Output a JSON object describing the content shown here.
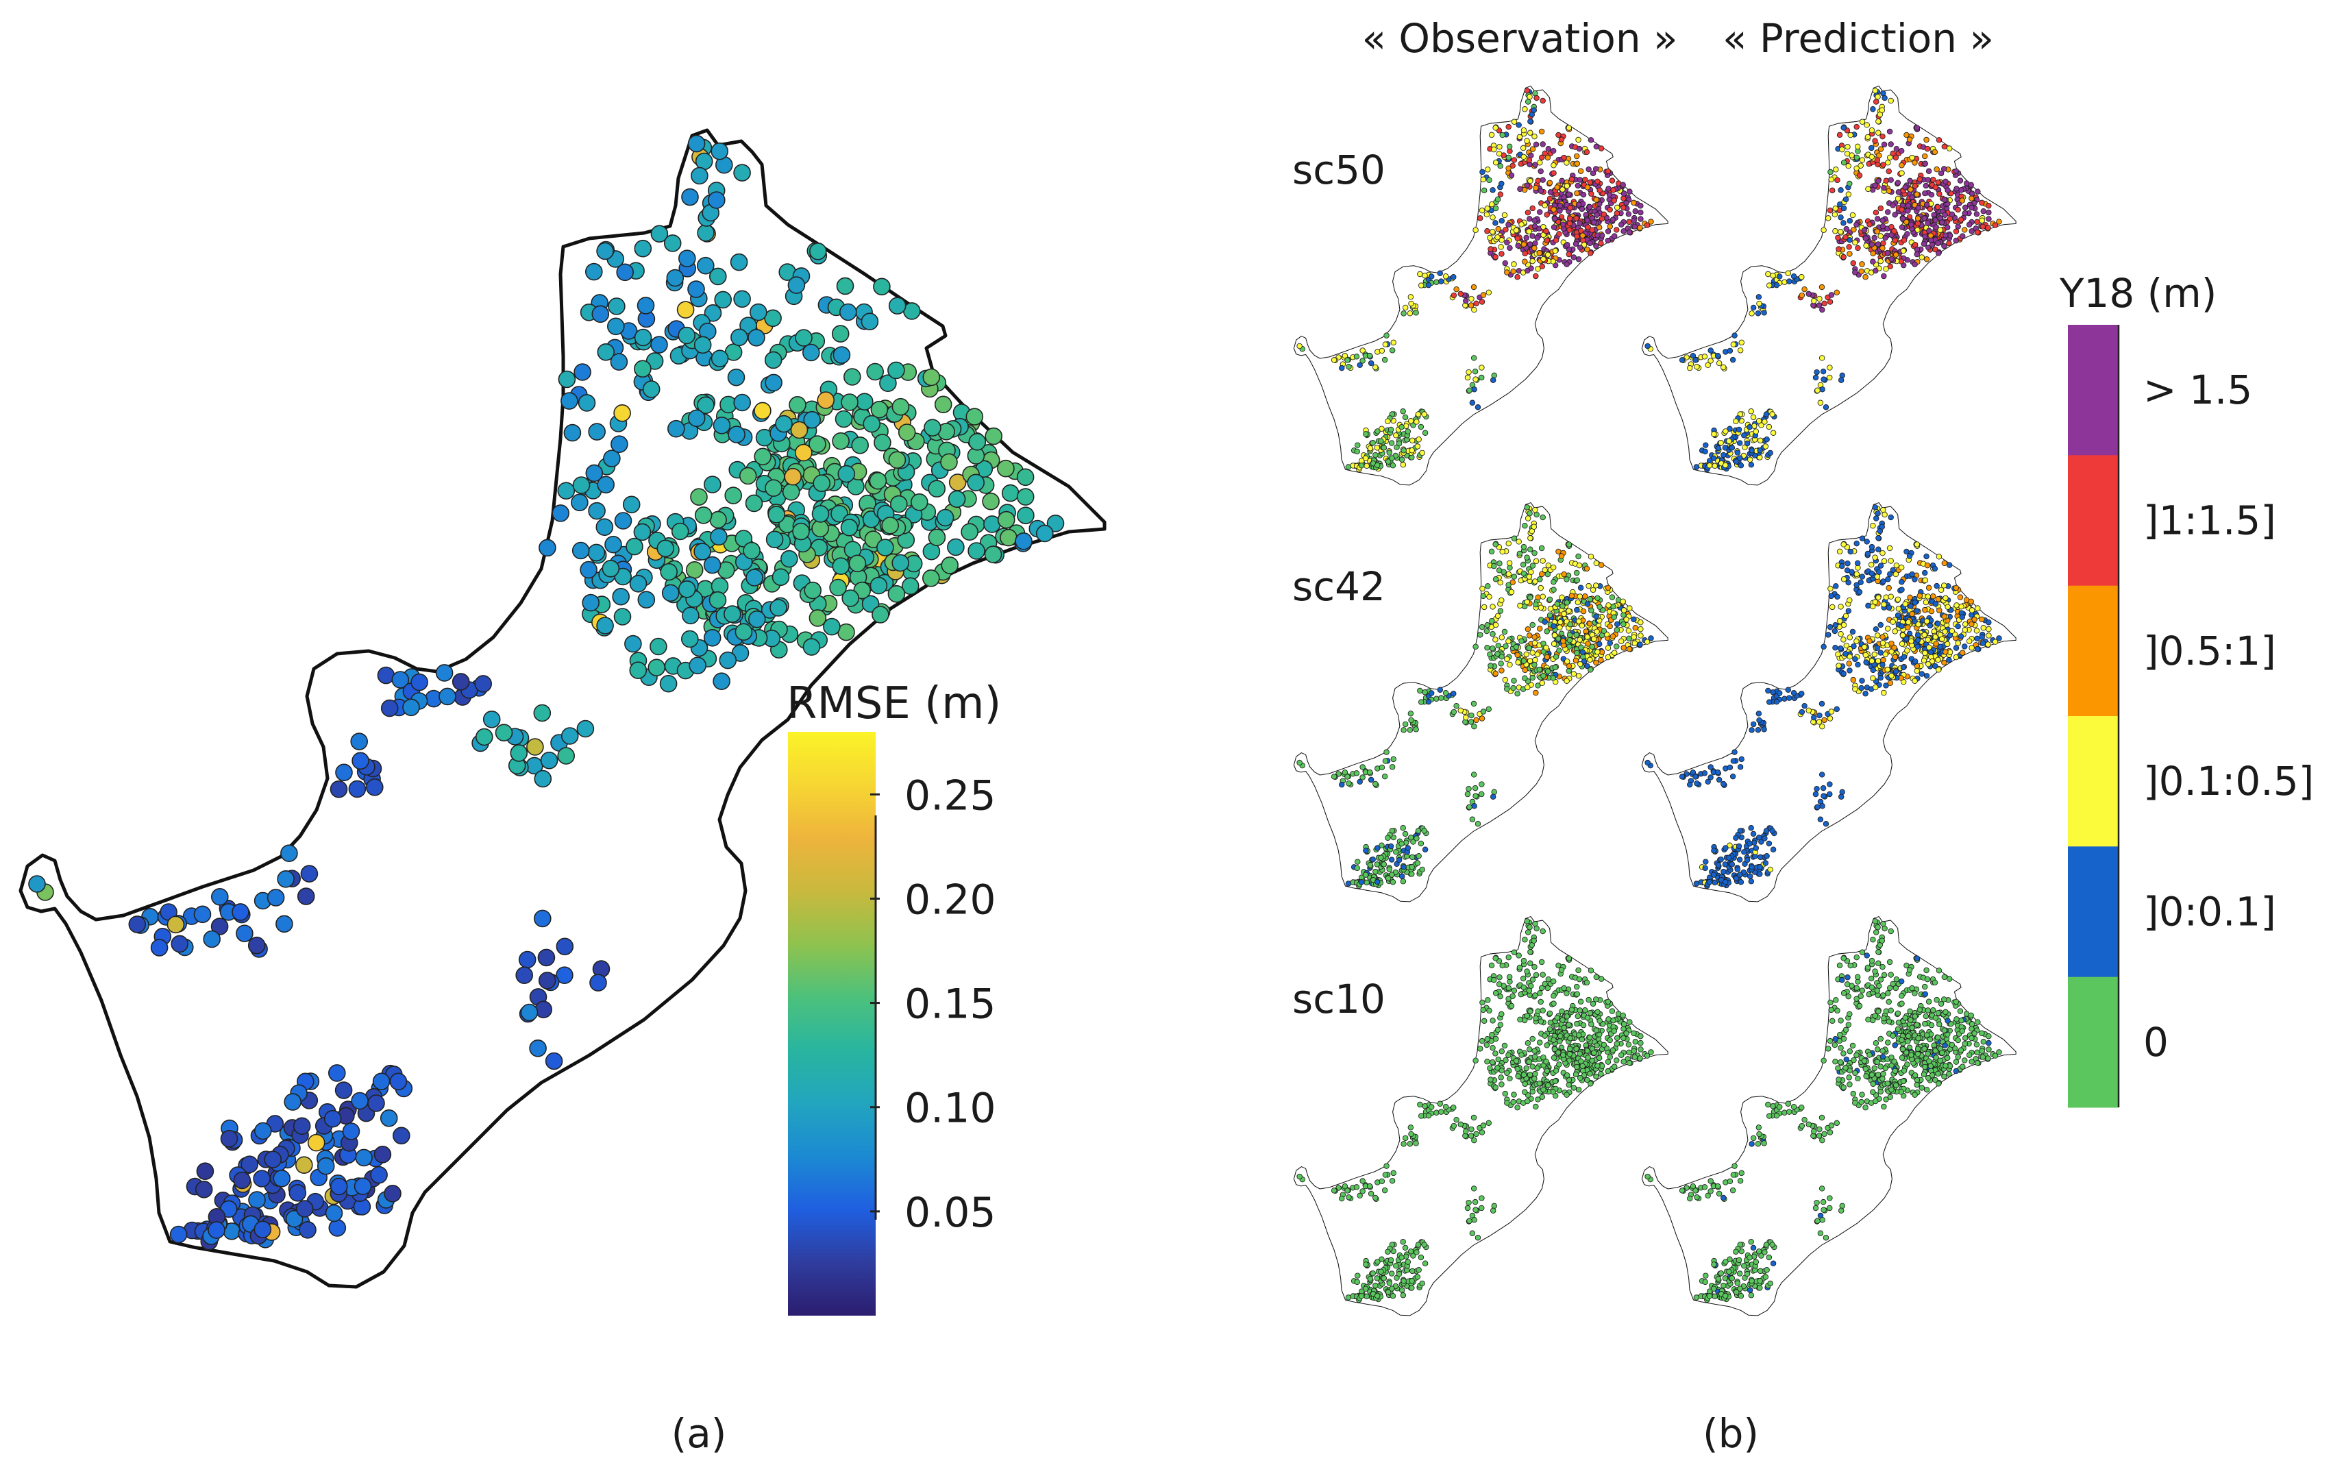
{
  "panel_a": {
    "caption": "(a)",
    "colorbar": {
      "title": "RMSE (m)",
      "ticks": [
        "0.25",
        "0.20",
        "0.15",
        "0.10",
        "0.05"
      ],
      "range": [
        0.0,
        0.28
      ],
      "colormap": [
        "#2c1d6f",
        "#2f3d9e",
        "#1f5fe0",
        "#1c8ad2",
        "#22a5be",
        "#29b59f",
        "#4cc17c",
        "#8fc24e",
        "#c9b93e",
        "#eeb43c",
        "#f6d633",
        "#fbf328"
      ]
    }
  },
  "panel_b": {
    "caption": "(b)",
    "column_headers": [
      "« Observation »",
      "« Prediction »"
    ],
    "rows": [
      "sc50",
      "sc42",
      "sc10"
    ],
    "legend": {
      "title": "Y18 (m)",
      "classes": [
        {
          "label": "> 1.5",
          "color": "#8e3599"
        },
        {
          "label": "]1:1.5]",
          "color": "#ef3a3a"
        },
        {
          "label": "]0.5:1]",
          "color": "#fb9600"
        },
        {
          "label": "]0.1:0.5]",
          "color": "#fbfb3c"
        },
        {
          "label": "]0:0.1]",
          "color": "#1763cc"
        },
        {
          "label": "0",
          "color": "#5bc65e"
        }
      ]
    }
  }
}
